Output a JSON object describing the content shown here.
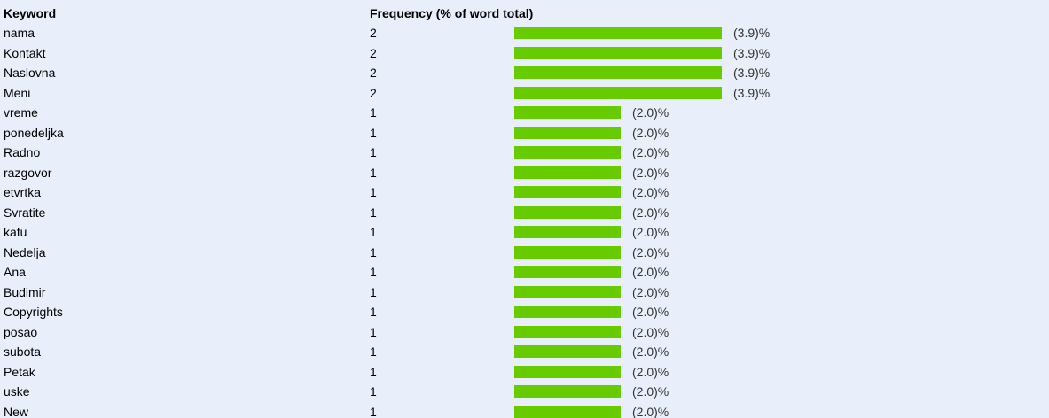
{
  "headers": {
    "keyword": "Keyword",
    "frequency": "Frequency (% of word total)"
  },
  "bar_color": "#66cc00",
  "rows": [
    {
      "keyword": "nama",
      "count": "2",
      "percent": "(3.9)%",
      "share": 3.9
    },
    {
      "keyword": "Kontakt",
      "count": "2",
      "percent": "(3.9)%",
      "share": 3.9
    },
    {
      "keyword": "Naslovna",
      "count": "2",
      "percent": "(3.9)%",
      "share": 3.9
    },
    {
      "keyword": "Meni",
      "count": "2",
      "percent": "(3.9)%",
      "share": 3.9
    },
    {
      "keyword": "vreme",
      "count": "1",
      "percent": "(2.0)%",
      "share": 2.0
    },
    {
      "keyword": "ponedeljka",
      "count": "1",
      "percent": "(2.0)%",
      "share": 2.0
    },
    {
      "keyword": "Radno",
      "count": "1",
      "percent": "(2.0)%",
      "share": 2.0
    },
    {
      "keyword": "razgovor",
      "count": "1",
      "percent": "(2.0)%",
      "share": 2.0
    },
    {
      "keyword": "etvrtka",
      "count": "1",
      "percent": "(2.0)%",
      "share": 2.0
    },
    {
      "keyword": "Svratite",
      "count": "1",
      "percent": "(2.0)%",
      "share": 2.0
    },
    {
      "keyword": "kafu",
      "count": "1",
      "percent": "(2.0)%",
      "share": 2.0
    },
    {
      "keyword": "Nedelja",
      "count": "1",
      "percent": "(2.0)%",
      "share": 2.0
    },
    {
      "keyword": "Ana",
      "count": "1",
      "percent": "(2.0)%",
      "share": 2.0
    },
    {
      "keyword": "Budimir",
      "count": "1",
      "percent": "(2.0)%",
      "share": 2.0
    },
    {
      "keyword": "Copyrights",
      "count": "1",
      "percent": "(2.0)%",
      "share": 2.0
    },
    {
      "keyword": "posao",
      "count": "1",
      "percent": "(2.0)%",
      "share": 2.0
    },
    {
      "keyword": "subota",
      "count": "1",
      "percent": "(2.0)%",
      "share": 2.0
    },
    {
      "keyword": "Petak",
      "count": "1",
      "percent": "(2.0)%",
      "share": 2.0
    },
    {
      "keyword": "uske",
      "count": "1",
      "percent": "(2.0)%",
      "share": 2.0
    },
    {
      "keyword": "New",
      "count": "1",
      "percent": "(2.0)%",
      "share": 2.0
    }
  ]
}
